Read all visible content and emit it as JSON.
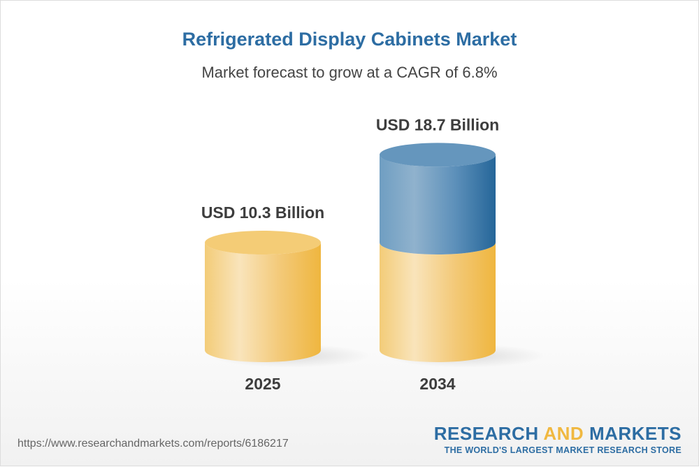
{
  "title": "Refrigerated Display Cabinets Market",
  "subtitle": "Market forecast to grow at a CAGR of 6.8%",
  "chart_data": {
    "type": "bar",
    "style": "3d-cylinder",
    "categories": [
      "2025",
      "2034"
    ],
    "values": [
      10.3,
      18.7
    ],
    "data_labels": [
      "USD 10.3 Billion",
      "USD 18.7 Billion"
    ],
    "unit": "USD Billion",
    "cagr": "6.8%",
    "colors": {
      "base": "#f2c25a",
      "growth": "#3a78a8"
    }
  },
  "footer": {
    "url": "https://www.researchandmarkets.com/reports/6186217",
    "logo_line1_a": "RESEARCH ",
    "logo_line1_b": "AND",
    "logo_line1_c": " MARKETS",
    "logo_line2": "THE WORLD'S LARGEST MARKET RESEARCH STORE"
  }
}
